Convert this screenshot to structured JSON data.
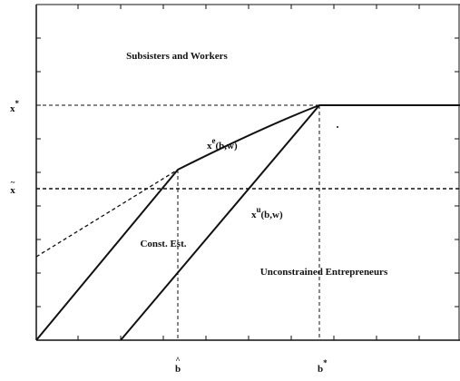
{
  "regions": [
    "Subsisters and Workers",
    "Const. Est.",
    "Unconstrained Entrepreneurs"
  ],
  "curves": [
    {
      "symbol": "x",
      "superscript": "e",
      "argument": "(b,w)"
    },
    {
      "symbol": "x",
      "superscript": "u",
      "argument": "(b,w)"
    }
  ],
  "y_axis_labels": [
    {
      "symbol": "x",
      "mark": "*"
    },
    {
      "symbol": "x",
      "mark": "~"
    }
  ],
  "x_axis_labels": [
    {
      "symbol": "b",
      "mark": "^"
    },
    {
      "symbol": "b",
      "mark": "*"
    }
  ]
}
